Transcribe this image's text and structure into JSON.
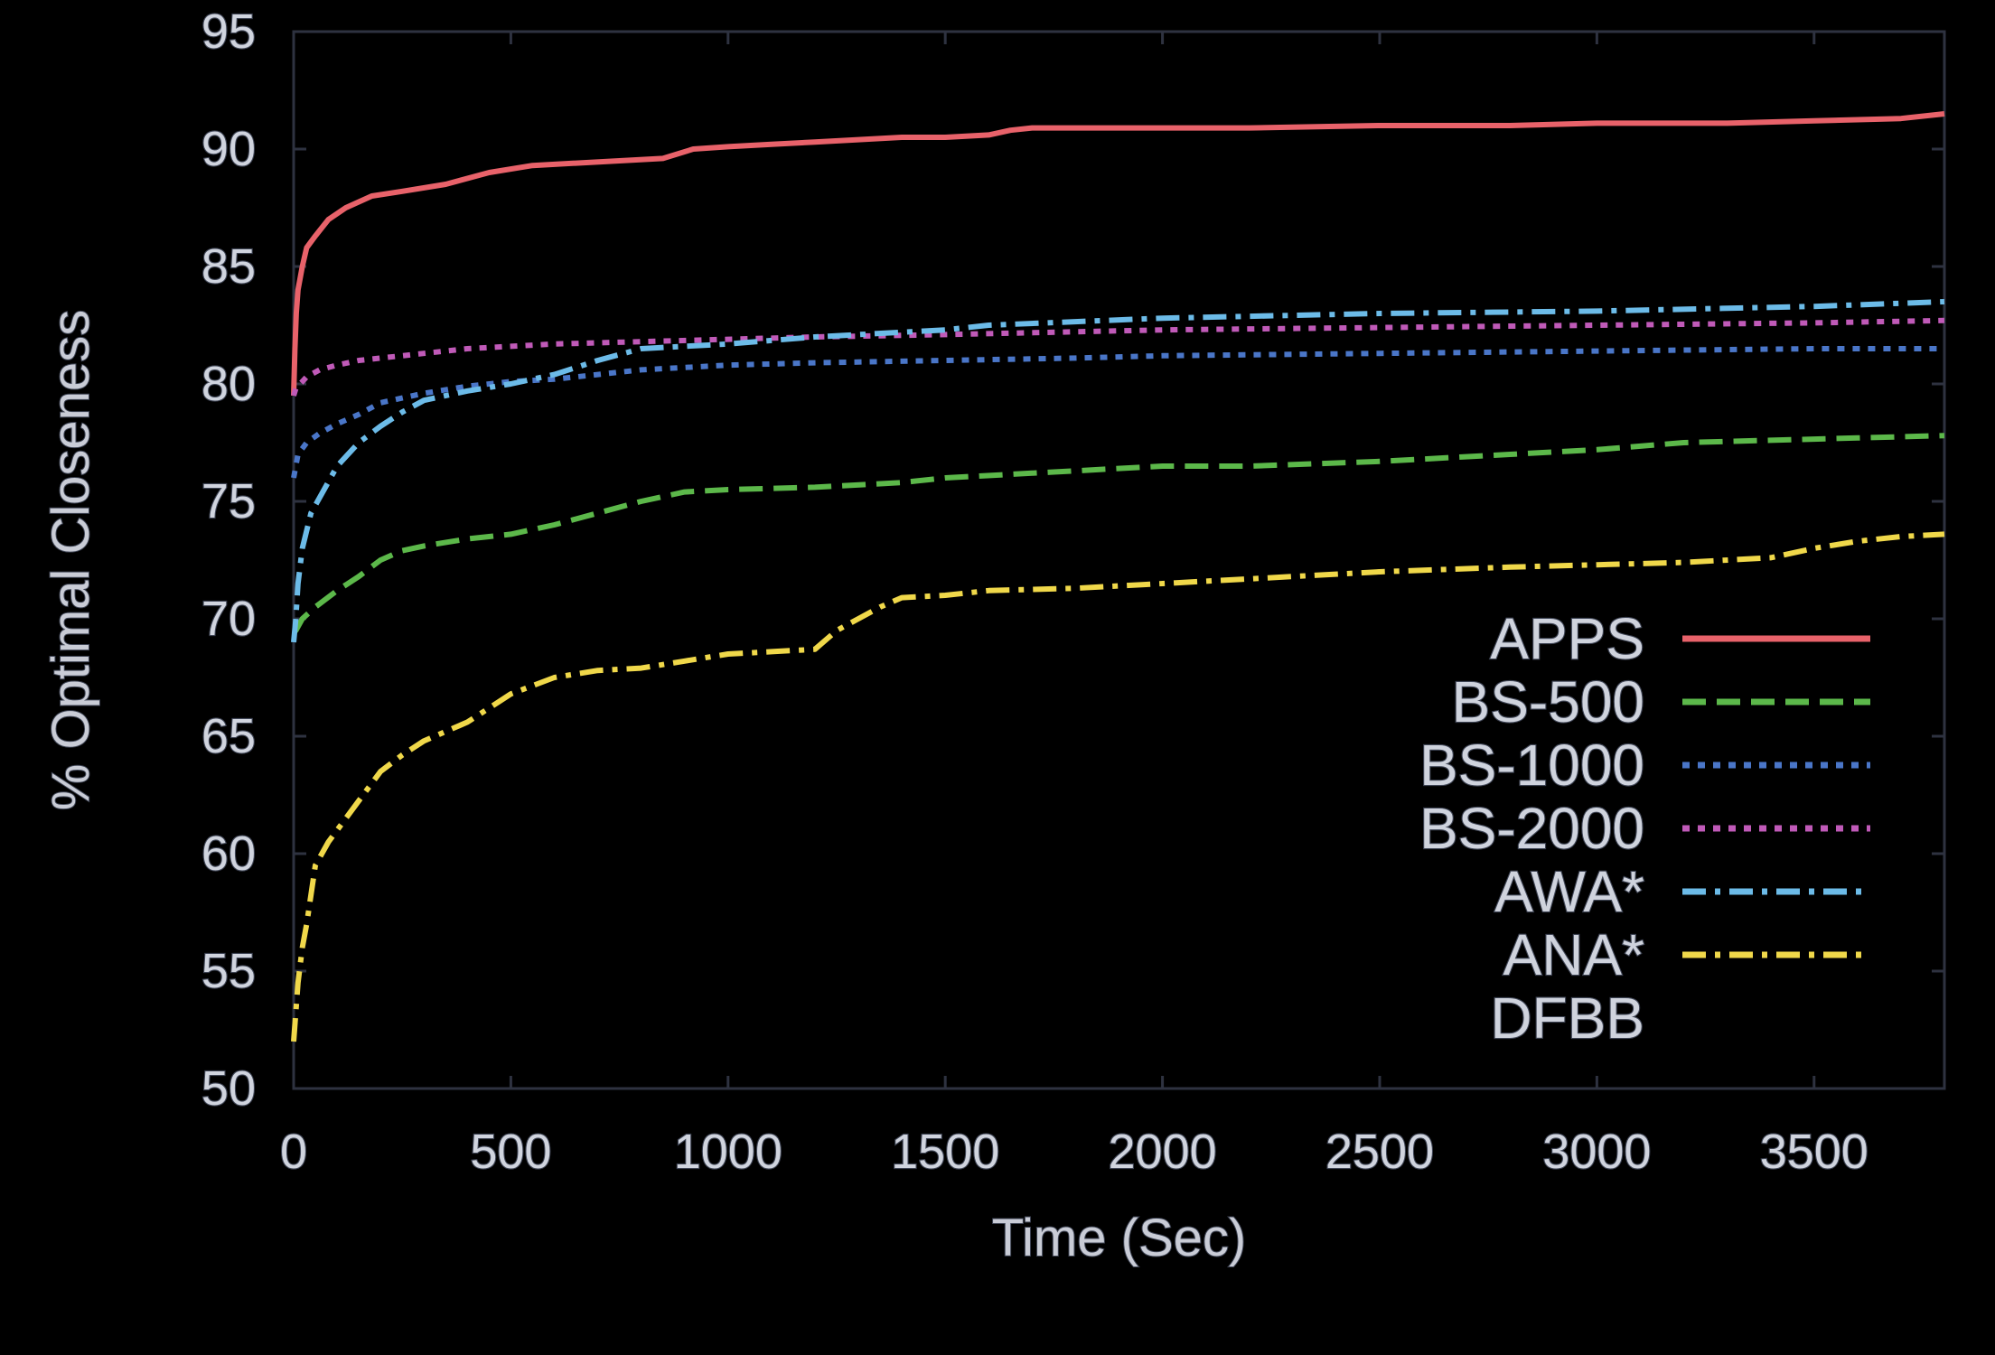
{
  "chart_data": {
    "type": "line",
    "title": "",
    "xlabel": "Time (Sec)",
    "ylabel": "% Optimal Closeness",
    "xlim": [
      0,
      3800
    ],
    "ylim": [
      50,
      95
    ],
    "xticks": [
      0,
      500,
      1000,
      1500,
      2000,
      2500,
      3000,
      3500
    ],
    "yticks": [
      50,
      55,
      60,
      65,
      70,
      75,
      80,
      85,
      90,
      95
    ],
    "grid": false,
    "legend_position": "bottom-right",
    "series": [
      {
        "name": "APPS",
        "color": "#e8626a",
        "style": "solid",
        "x": [
          0,
          3,
          6,
          10,
          20,
          30,
          50,
          80,
          120,
          180,
          250,
          350,
          450,
          550,
          650,
          750,
          850,
          920,
          1000,
          1100,
          1200,
          1300,
          1400,
          1500,
          1600,
          1650,
          1700,
          1800,
          2000,
          2200,
          2500,
          2800,
          3000,
          3300,
          3500,
          3700,
          3800
        ],
        "y": [
          79.5,
          81.5,
          83,
          84,
          85,
          85.8,
          86.3,
          87,
          87.5,
          88,
          88.2,
          88.5,
          89,
          89.3,
          89.4,
          89.5,
          89.6,
          90,
          90.1,
          90.2,
          90.3,
          90.4,
          90.5,
          90.5,
          90.6,
          90.8,
          90.9,
          90.9,
          90.9,
          90.9,
          91,
          91,
          91.1,
          91.1,
          91.2,
          91.3,
          91.5
        ]
      },
      {
        "name": "BS-500",
        "color": "#5cb84a",
        "style": "dashed",
        "x": [
          0,
          5,
          20,
          50,
          100,
          150,
          200,
          250,
          300,
          400,
          500,
          600,
          700,
          800,
          900,
          1000,
          1200,
          1400,
          1500,
          1700,
          2000,
          2200,
          2500,
          2800,
          3000,
          3200,
          3400,
          3600,
          3800
        ],
        "y": [
          69.5,
          69.5,
          70,
          70.5,
          71.2,
          71.8,
          72.5,
          72.9,
          73.1,
          73.4,
          73.6,
          74,
          74.5,
          75,
          75.4,
          75.5,
          75.6,
          75.8,
          76,
          76.2,
          76.5,
          76.5,
          76.7,
          77,
          77.2,
          77.5,
          77.6,
          77.7,
          77.8
        ]
      },
      {
        "name": "BS-1000",
        "color": "#4a76c8",
        "style": "dotted",
        "x": [
          0,
          10,
          30,
          60,
          100,
          150,
          200,
          300,
          400,
          500,
          600,
          700,
          800,
          900,
          1000,
          1200,
          1500,
          1800,
          2000,
          2500,
          3000,
          3500,
          3800
        ],
        "y": [
          76,
          77,
          77.5,
          77.9,
          78.3,
          78.7,
          79.2,
          79.6,
          79.9,
          80.1,
          80.2,
          80.4,
          80.6,
          80.7,
          80.8,
          80.9,
          81,
          81.1,
          81.2,
          81.3,
          81.4,
          81.5,
          81.5
        ]
      },
      {
        "name": "BS-2000",
        "color": "#c05ab8",
        "style": "dotted",
        "x": [
          0,
          5,
          15,
          30,
          60,
          100,
          150,
          200,
          300,
          400,
          500,
          600,
          800,
          1000,
          1200,
          1500,
          2000,
          2500,
          3000,
          3500,
          3800
        ],
        "y": [
          79.5,
          79.8,
          80,
          80.3,
          80.6,
          80.8,
          81,
          81.1,
          81.3,
          81.5,
          81.6,
          81.7,
          81.8,
          81.9,
          82,
          82.1,
          82.3,
          82.4,
          82.5,
          82.6,
          82.7
        ]
      },
      {
        "name": "AWA*",
        "color": "#6cbbe8",
        "style": "dashdot",
        "x": [
          0,
          5,
          10,
          20,
          40,
          70,
          100,
          150,
          200,
          250,
          300,
          400,
          500,
          600,
          700,
          800,
          900,
          1000,
          1200,
          1400,
          1500,
          1600,
          2000,
          2500,
          3000,
          3500,
          3800
        ],
        "y": [
          69,
          70,
          71.5,
          73,
          74.5,
          75.5,
          76.5,
          77.5,
          78.2,
          78.8,
          79.3,
          79.7,
          80,
          80.4,
          81,
          81.5,
          81.6,
          81.7,
          82,
          82.2,
          82.3,
          82.5,
          82.8,
          83,
          83.1,
          83.3,
          83.5
        ]
      },
      {
        "name": "ANA*",
        "color": "#f0d84a",
        "style": "dashdot",
        "x": [
          0,
          10,
          20,
          30,
          50,
          80,
          120,
          160,
          200,
          250,
          300,
          350,
          400,
          450,
          500,
          600,
          700,
          800,
          900,
          1000,
          1100,
          1200,
          1250,
          1300,
          1350,
          1400,
          1500,
          1600,
          1800,
          2000,
          2200,
          2500,
          2800,
          3000,
          3200,
          3400,
          3500,
          3600,
          3700,
          3800
        ],
        "y": [
          52,
          54.5,
          56,
          57,
          59.5,
          60.5,
          61.5,
          62.5,
          63.5,
          64.2,
          64.8,
          65.2,
          65.6,
          66.2,
          66.8,
          67.5,
          67.8,
          67.9,
          68.2,
          68.5,
          68.6,
          68.7,
          69.5,
          70,
          70.5,
          70.9,
          71,
          71.2,
          71.3,
          71.5,
          71.7,
          72,
          72.2,
          72.3,
          72.4,
          72.6,
          73,
          73.3,
          73.5,
          73.6
        ]
      },
      {
        "name": "DFBB",
        "color": "#000000",
        "style": "solid",
        "x": [],
        "y": []
      }
    ]
  }
}
